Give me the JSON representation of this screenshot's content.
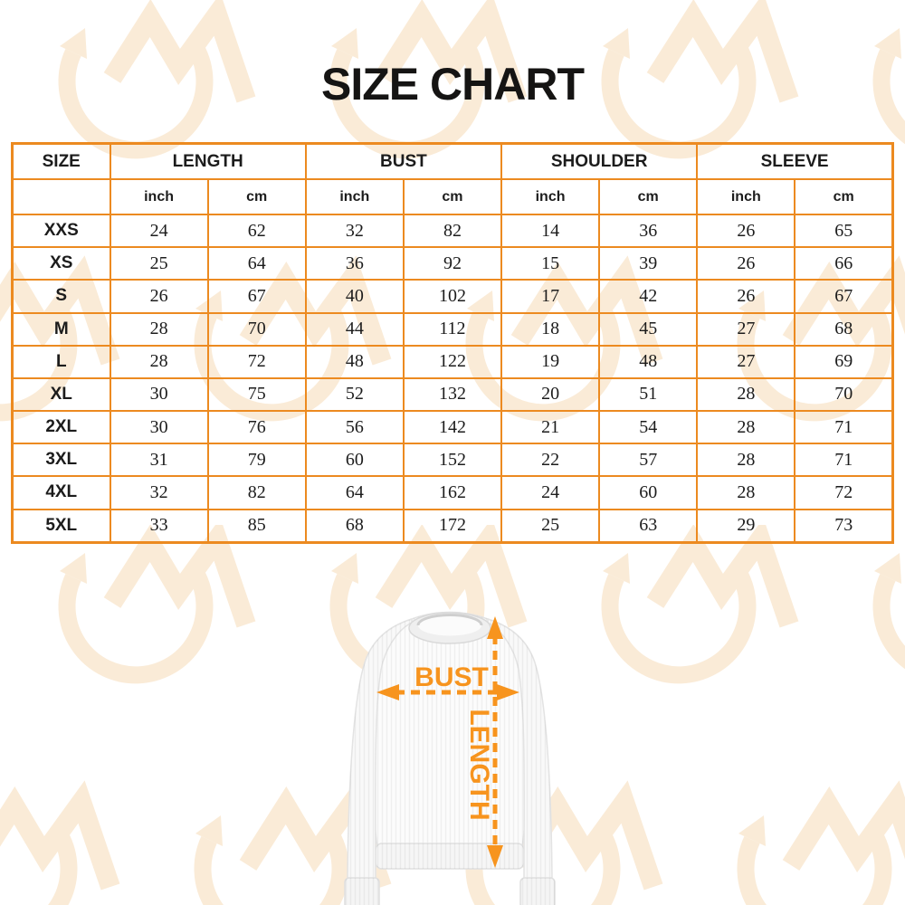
{
  "title": "SIZE CHART",
  "table": {
    "size_header": "SIZE",
    "groups": [
      "LENGTH",
      "BUST",
      "SHOULDER",
      "SLEEVE"
    ],
    "units": [
      "inch",
      "cm"
    ],
    "rows": [
      {
        "size": "XXS",
        "values": [
          "24",
          "62",
          "32",
          "82",
          "14",
          "36",
          "26",
          "65"
        ]
      },
      {
        "size": "XS",
        "values": [
          "25",
          "64",
          "36",
          "92",
          "15",
          "39",
          "26",
          "66"
        ]
      },
      {
        "size": "S",
        "values": [
          "26",
          "67",
          "40",
          "102",
          "17",
          "42",
          "26",
          "67"
        ]
      },
      {
        "size": "M",
        "values": [
          "28",
          "70",
          "44",
          "112",
          "18",
          "45",
          "27",
          "68"
        ]
      },
      {
        "size": "L",
        "values": [
          "28",
          "72",
          "48",
          "122",
          "19",
          "48",
          "27",
          "69"
        ]
      },
      {
        "size": "XL",
        "values": [
          "30",
          "75",
          "52",
          "132",
          "20",
          "51",
          "28",
          "70"
        ]
      },
      {
        "size": "2XL",
        "values": [
          "30",
          "76",
          "56",
          "142",
          "21",
          "54",
          "28",
          "71"
        ]
      },
      {
        "size": "3XL",
        "values": [
          "31",
          "79",
          "60",
          "152",
          "22",
          "57",
          "28",
          "71"
        ]
      },
      {
        "size": "4XL",
        "values": [
          "32",
          "82",
          "64",
          "162",
          "24",
          "60",
          "28",
          "72"
        ]
      },
      {
        "size": "5XL",
        "values": [
          "33",
          "85",
          "68",
          "172",
          "25",
          "63",
          "29",
          "73"
        ]
      }
    ]
  },
  "diagram": {
    "bust_label": "BUST",
    "length_label": "LENGTH"
  },
  "colors": {
    "table_border_orange": "#EC8A20",
    "arrow_orange": "#F7941E",
    "watermark_peach": "#FAEBD7",
    "title_black": "#151413"
  }
}
